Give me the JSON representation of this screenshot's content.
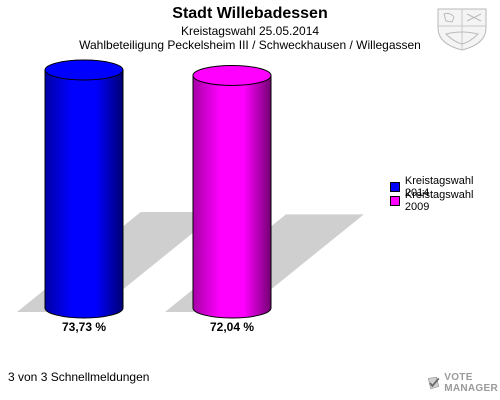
{
  "header": {
    "title": "Stadt Willebadessen",
    "date_line": "Kreistagswahl 25.05.2014",
    "district_line": "Wahlbeteiligung Peckelsheim III / Schweckhausen / Willegassen"
  },
  "chart_data": {
    "type": "bar",
    "title": "Stadt Willebadessen",
    "subtitle": "Kreistagswahl 25.05.2014 — Wahlbeteiligung Peckelsheim III / Schweckhausen / Willegassen",
    "categories": [
      "Kreistagswahl 2014",
      "Kreistagswahl 2009"
    ],
    "values": [
      73.73,
      72.04
    ],
    "value_labels": [
      "73,73 %",
      "72,04 %"
    ],
    "colors": [
      "#0000ff",
      "#ff00ff"
    ],
    "ylim": [
      0,
      73.73
    ],
    "grid": false,
    "legend_placement": "right",
    "style": "3d-cylinder"
  },
  "legend": {
    "items": [
      {
        "label": "Kreistagswahl 2014",
        "color": "#0000ff"
      },
      {
        "label": "Kreistagswahl 2009",
        "color": "#ff00ff"
      }
    ]
  },
  "footer": {
    "text": "3 von 3 Schnellmeldungen"
  },
  "branding": {
    "logo_line1": "VOTE",
    "logo_line2": "MANAGER",
    "logo_icon": "ballot-check-icon",
    "crest_icon": "coat-of-arms-icon"
  }
}
